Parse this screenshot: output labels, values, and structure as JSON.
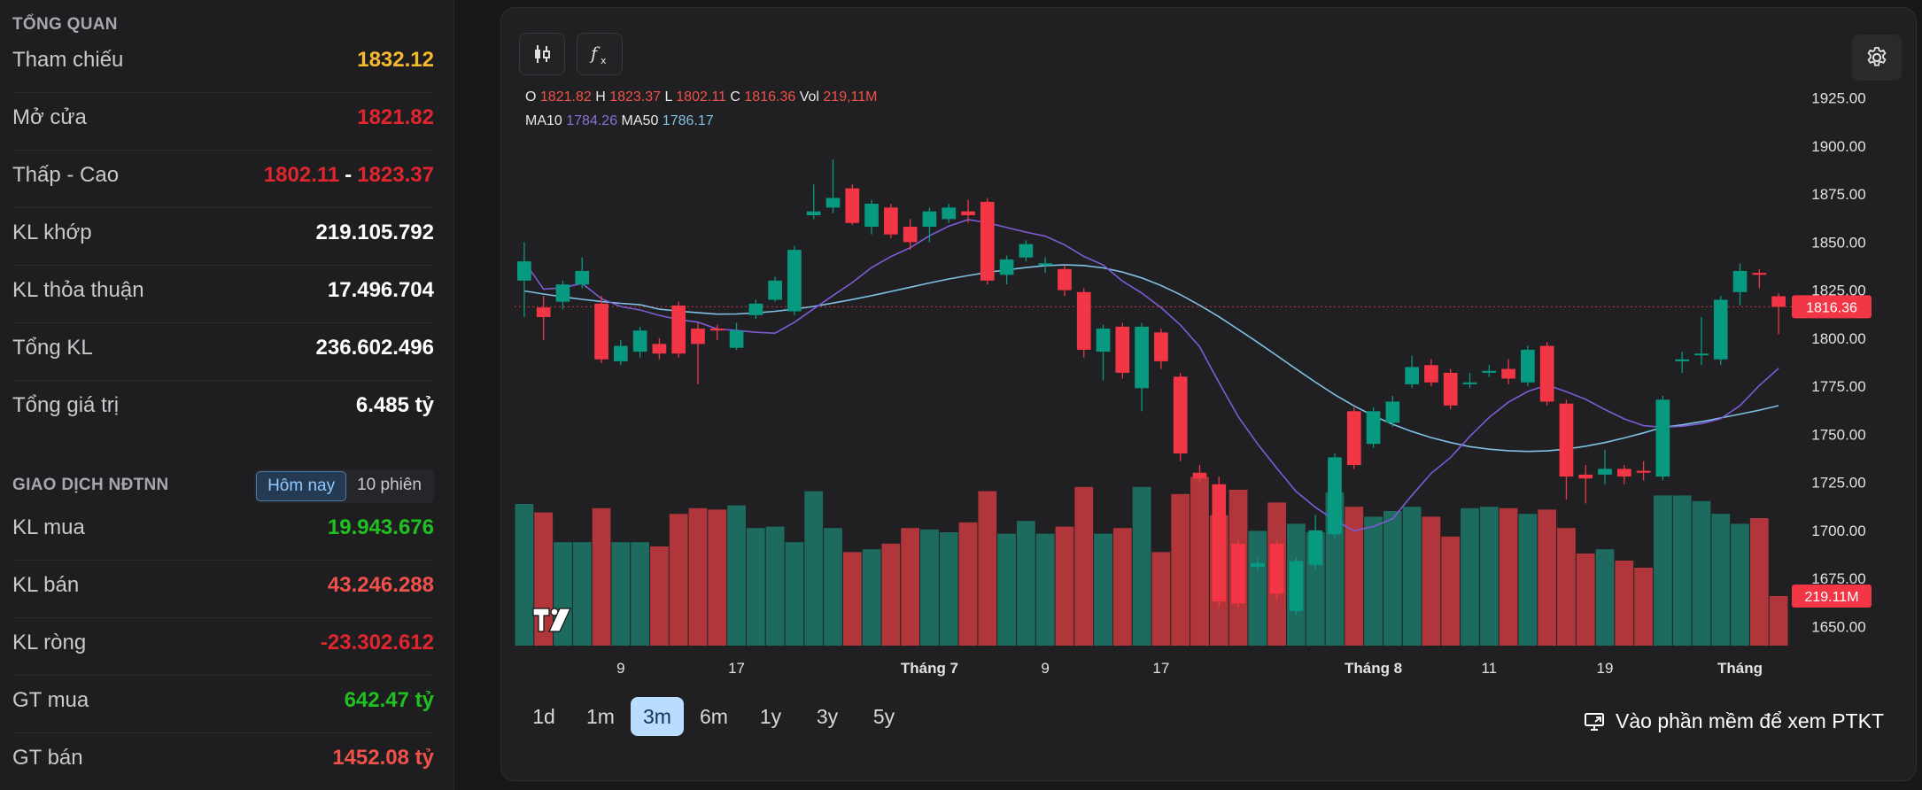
{
  "overview": {
    "title": "TỔNG QUAN",
    "rows": [
      {
        "label": "Tham chiếu",
        "value": "1832.12"
      },
      {
        "label": "Mở cửa",
        "value": "1821.82"
      },
      {
        "label": "Thấp - Cao",
        "low": "1802.11",
        "high": "1823.37",
        "sep": "-"
      },
      {
        "label": "KL khớp",
        "value": "219.105.792"
      },
      {
        "label": "KL thỏa thuận",
        "value": "17.496.704"
      },
      {
        "label": "Tổng KL",
        "value": "236.602.496"
      },
      {
        "label": "Tổng giá trị",
        "value": "6.485 tỷ"
      }
    ]
  },
  "foreign": {
    "title": "GIAO DỊCH NĐTNN",
    "tabs": [
      "Hôm nay",
      "10 phiên"
    ],
    "rows": [
      {
        "label": "KL mua",
        "value": "19.943.676"
      },
      {
        "label": "KL bán",
        "value": "43.246.288"
      },
      {
        "label": "KL ròng",
        "value": "-23.302.612"
      },
      {
        "label": "GT mua",
        "value": "642.47 tỷ"
      },
      {
        "label": "GT bán",
        "value": "1452.08 tỷ"
      }
    ]
  },
  "legend": {
    "o_label": "O",
    "o": "1821.82",
    "h_label": "H",
    "h": "1823.37",
    "l_label": "L",
    "l": "1802.11",
    "c_label": "C",
    "c": "1816.36",
    "vol_label": "Vol",
    "vol": "219,11M",
    "ma10_label": "MA10",
    "ma10": "1784.26",
    "ma50_label": "MA50",
    "ma50": "1786.17"
  },
  "ranges": [
    "1d",
    "1m",
    "3m",
    "6m",
    "1y",
    "3y",
    "5y"
  ],
  "active_range": "3m",
  "ptkt_label": "Vào phần mềm để xem PTKT",
  "colors": {
    "up": "#089981",
    "down": "#f23645",
    "ma10": "#7e5bd6",
    "ma50": "#7fc0e4"
  },
  "icons": [
    "candlestick-icon",
    "function-icon",
    "gear-icon",
    "tradingview-logo",
    "monitor-icon"
  ],
  "chart_data": {
    "type": "candlestick",
    "y_ticks": [
      "1925.00",
      "1900.00",
      "1875.00",
      "1850.00",
      "1825.00",
      "1800.00",
      "1775.00",
      "1750.00",
      "1725.00",
      "1700.00",
      "1675.00",
      "1650.00"
    ],
    "ylim": [
      1640,
      1935
    ],
    "x_ticks": [
      {
        "label": "9",
        "i": 5
      },
      {
        "label": "17",
        "i": 11
      },
      {
        "label": "Tháng 7",
        "i": 21
      },
      {
        "label": "9",
        "i": 27
      },
      {
        "label": "17",
        "i": 33
      },
      {
        "label": "Tháng 8",
        "i": 44
      },
      {
        "label": "11",
        "i": 50
      },
      {
        "label": "19",
        "i": 56
      },
      {
        "label": "Tháng",
        "i": 63
      }
    ],
    "last_price_label": "1816.36",
    "last_price": 1816.36,
    "last_volume_label": "219.11M",
    "candles": [
      [
        1830,
        1840,
        1811,
        1850
      ],
      [
        1816,
        1811,
        1799,
        1822
      ],
      [
        1819,
        1828,
        1815,
        1830
      ],
      [
        1828,
        1835,
        1826,
        1842
      ],
      [
        1818,
        1789,
        1787,
        1822
      ],
      [
        1788,
        1796,
        1786,
        1799
      ],
      [
        1793,
        1804,
        1790,
        1806
      ],
      [
        1797,
        1792,
        1789,
        1800
      ],
      [
        1817,
        1792,
        1790,
        1819
      ],
      [
        1805,
        1797,
        1776,
        1808
      ],
      [
        1805,
        1804,
        1799,
        1807
      ],
      [
        1795,
        1804,
        1794,
        1808
      ],
      [
        1812,
        1818,
        1810,
        1820
      ],
      [
        1820,
        1830,
        1819,
        1832
      ],
      [
        1814,
        1846,
        1812,
        1848
      ],
      [
        1864,
        1866,
        1862,
        1880
      ],
      [
        1868,
        1873,
        1865,
        1893
      ],
      [
        1878,
        1860,
        1859,
        1880
      ],
      [
        1858,
        1870,
        1854,
        1872
      ],
      [
        1868,
        1854,
        1852,
        1870
      ],
      [
        1858,
        1850,
        1846,
        1862
      ],
      [
        1858,
        1866,
        1850,
        1868
      ],
      [
        1862,
        1868,
        1860,
        1870
      ],
      [
        1866,
        1864,
        1860,
        1872
      ],
      [
        1871,
        1830,
        1828,
        1873
      ],
      [
        1833,
        1841,
        1828,
        1843
      ],
      [
        1842,
        1849,
        1840,
        1851
      ],
      [
        1838,
        1839,
        1834,
        1842
      ],
      [
        1836,
        1825,
        1822,
        1838
      ],
      [
        1824,
        1794,
        1790,
        1826
      ],
      [
        1793,
        1805,
        1778,
        1807
      ],
      [
        1806,
        1782,
        1779,
        1808
      ],
      [
        1774,
        1806,
        1762,
        1808
      ],
      [
        1803,
        1788,
        1784,
        1805
      ],
      [
        1780,
        1740,
        1736,
        1782
      ],
      [
        1730,
        1727,
        1725,
        1734
      ],
      [
        1724,
        1663,
        1660,
        1728
      ],
      [
        1693,
        1662,
        1660,
        1695
      ],
      [
        1681,
        1683,
        1679,
        1686
      ],
      [
        1693,
        1667,
        1664,
        1695
      ],
      [
        1658,
        1684,
        1656,
        1686
      ],
      [
        1682,
        1700,
        1680,
        1708
      ],
      [
        1698,
        1738,
        1696,
        1740
      ],
      [
        1762,
        1734,
        1732,
        1764
      ],
      [
        1745,
        1762,
        1743,
        1764
      ],
      [
        1756,
        1767,
        1754,
        1770
      ],
      [
        1776,
        1785,
        1774,
        1791
      ],
      [
        1786,
        1777,
        1775,
        1789
      ],
      [
        1782,
        1765,
        1763,
        1784
      ],
      [
        1776,
        1777,
        1774,
        1782
      ],
      [
        1782,
        1783,
        1780,
        1786
      ],
      [
        1784,
        1779,
        1776,
        1789
      ],
      [
        1777,
        1794,
        1775,
        1796
      ],
      [
        1796,
        1767,
        1765,
        1798
      ],
      [
        1766,
        1728,
        1716,
        1768
      ],
      [
        1729,
        1727,
        1714,
        1734
      ],
      [
        1729,
        1732,
        1724,
        1742
      ],
      [
        1732,
        1728,
        1724,
        1734
      ],
      [
        1731,
        1730,
        1726,
        1736
      ],
      [
        1728,
        1768,
        1726,
        1770
      ],
      [
        1788,
        1789,
        1782,
        1793
      ],
      [
        1792,
        1792,
        1786,
        1811
      ],
      [
        1789,
        1820,
        1786,
        1822
      ],
      [
        1824,
        1835,
        1817,
        1839
      ],
      [
        1834,
        1833,
        1826,
        1836
      ],
      [
        1821.82,
        1816.36,
        1802.11,
        1823.37
      ]
    ],
    "volumes": [
      1.0,
      0.94,
      0.73,
      0.73,
      0.97,
      0.73,
      0.73,
      0.7,
      0.93,
      0.97,
      0.96,
      0.99,
      0.83,
      0.84,
      0.73,
      1.09,
      0.83,
      0.66,
      0.68,
      0.72,
      0.83,
      0.82,
      0.8,
      0.87,
      1.09,
      0.79,
      0.88,
      0.79,
      0.84,
      1.12,
      0.79,
      0.83,
      1.12,
      0.66,
      1.07,
      1.19,
      0.92,
      1.1,
      0.81,
      1.01,
      0.86,
      0.8,
      1.08,
      0.98,
      0.91,
      0.95,
      0.98,
      0.91,
      0.77,
      0.97,
      0.98,
      0.97,
      0.93,
      0.96,
      0.83,
      0.65,
      0.68,
      0.6,
      0.55,
      1.06,
      1.06,
      1.02,
      0.93,
      0.86,
      0.9,
      0.35
    ]
  }
}
